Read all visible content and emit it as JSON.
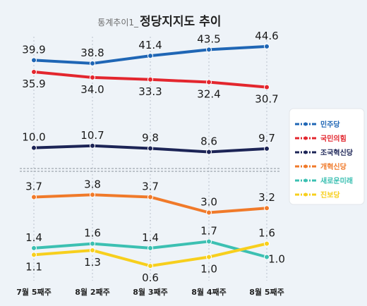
{
  "chart_data": {
    "type": "line",
    "title_prefix": "통계추이1_",
    "title": "정당지지도 추이",
    "categories": [
      "7월 5째주",
      "8월 2째주",
      "8월 3째주",
      "8월 4째주",
      "8월 5째주"
    ],
    "series": [
      {
        "name": "민주당",
        "color": "#1f66b5",
        "values": [
          39.9,
          38.8,
          41.4,
          43.5,
          44.6
        ],
        "labels": [
          "39.9",
          "38.8",
          "41.4",
          "43.5",
          "44.6"
        ]
      },
      {
        "name": "국민의힘",
        "color": "#e3262e",
        "values": [
          35.9,
          34.0,
          33.3,
          32.4,
          30.7
        ],
        "labels": [
          "35.9",
          "34.0",
          "33.3",
          "32.4",
          "30.7"
        ]
      },
      {
        "name": "조국혁신당",
        "color": "#1c2456",
        "values": [
          10.0,
          10.7,
          9.8,
          8.6,
          9.7
        ],
        "labels": [
          "10.0",
          "10.7",
          "9.8",
          "8.6",
          "9.7"
        ]
      },
      {
        "name": "개혁신당",
        "color": "#f07a2a",
        "values": [
          3.7,
          3.8,
          3.7,
          3.0,
          3.2
        ],
        "labels": [
          "3.7",
          "3.8",
          "3.7",
          "3.0",
          "3.2"
        ]
      },
      {
        "name": "새로운미래",
        "color": "#3cc0b2",
        "values": [
          1.4,
          1.6,
          1.4,
          1.7,
          1.0
        ],
        "labels": [
          "1.4",
          "1.6",
          "1.4",
          "1.7",
          "1.0"
        ]
      },
      {
        "name": "진보당",
        "color": "#f7cf1d",
        "values": [
          1.1,
          1.3,
          0.6,
          1.0,
          1.6
        ],
        "labels": [
          "1.1",
          "1.3",
          "0.6",
          "1.0",
          "1.6"
        ]
      }
    ],
    "axis_break": true,
    "grid": "vertical-dashed",
    "legend_position": "right"
  }
}
